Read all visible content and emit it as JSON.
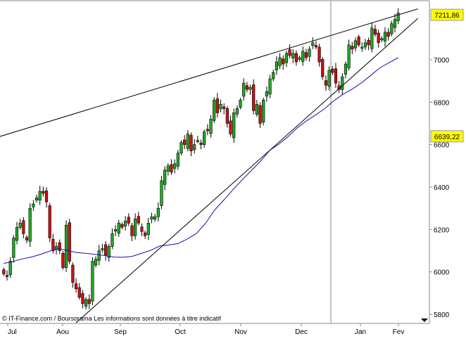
{
  "chart_data": {
    "type": "candlestick",
    "title": "",
    "xlabel": "",
    "ylabel": "",
    "ylim": [
      5760,
      7240
    ],
    "y_ticks": [
      5800,
      6000,
      6200,
      6400,
      6600,
      6800,
      7000
    ],
    "x_tick_labels": [
      "Jul",
      "Aou",
      "Sep",
      "Oct",
      "Nov",
      "Dec",
      "Jan",
      "Fev"
    ],
    "grid": false,
    "price_badges": [
      {
        "value": 7211.86,
        "label": "7211,86",
        "color": "#ffff00"
      },
      {
        "value": 6639.22,
        "label": "6639,22",
        "color": "#ffff00"
      }
    ],
    "footer_text": "© IT-Finance.com / Boursorama Les informations sont données à titre indicatif",
    "colors": {
      "up": "#22aa22",
      "down": "#cc1111",
      "moving_average": "#1010aa",
      "trendline": "#000000"
    },
    "series": {
      "candles_closes": [
        5990,
        5980,
        6050,
        6160,
        6210,
        6230,
        6180,
        6150,
        6300,
        6320,
        6350,
        6380,
        6370,
        6330,
        6160,
        6100,
        6120,
        6100,
        6020,
        6220,
        6050,
        5950,
        5920,
        5880,
        5850,
        5870,
        5850,
        6050,
        6060,
        6100,
        6110,
        6080,
        6120,
        6180,
        6200,
        6230,
        6210,
        6240,
        6230,
        6170,
        6250,
        6230,
        6190,
        6170,
        6230,
        6260,
        6260,
        6300,
        6430,
        6480,
        6500,
        6470,
        6510,
        6560,
        6610,
        6600,
        6650,
        6570,
        6600,
        6620,
        6600,
        6660,
        6670,
        6720,
        6810,
        6750,
        6790,
        6770,
        6700,
        6650,
        6750,
        6770,
        6810,
        6890,
        6860,
        6870,
        6760,
        6790,
        6700,
        6810,
        6850,
        6910,
        6940,
        6990,
        7010,
        6980,
        7030,
        7020,
        7030,
        6990,
        7010,
        7040,
        7010,
        7050,
        7080,
        7060,
        6990,
        6920,
        6880,
        6950,
        6940,
        6890,
        6860,
        6920,
        6980,
        7070,
        7050,
        7090,
        7070,
        7060,
        7080,
        7070,
        7150,
        7120,
        7080,
        7100,
        7130,
        7110,
        7170,
        7190,
        7220
      ],
      "moving_average": {
        "x_start_index": 0,
        "x_end_index": 120,
        "values": [
          6040,
          6049,
          6061,
          6070,
          6082,
          6098,
          6109,
          6100,
          6091,
          6087,
          6082,
          6077,
          6070,
          6069,
          6073,
          6087,
          6101,
          6122,
          6127,
          6133,
          6155,
          6181,
          6229,
          6292,
          6339,
          6388,
          6434,
          6478,
          6522,
          6573,
          6603,
          6638,
          6679,
          6712,
          6740,
          6770,
          6807,
          6838,
          6862,
          6891,
          6926,
          6962,
          6986,
          7010
        ]
      }
    },
    "trendlines": [
      {
        "name": "",
        "from": {
          "index": -4,
          "value": 6625
        },
        "to": {
          "index": 126,
          "value": 7240
        }
      },
      {
        "name": "",
        "from": {
          "index": 22,
          "value": 5760
        },
        "to": {
          "index": 126,
          "value": 7195
        }
      }
    ]
  }
}
